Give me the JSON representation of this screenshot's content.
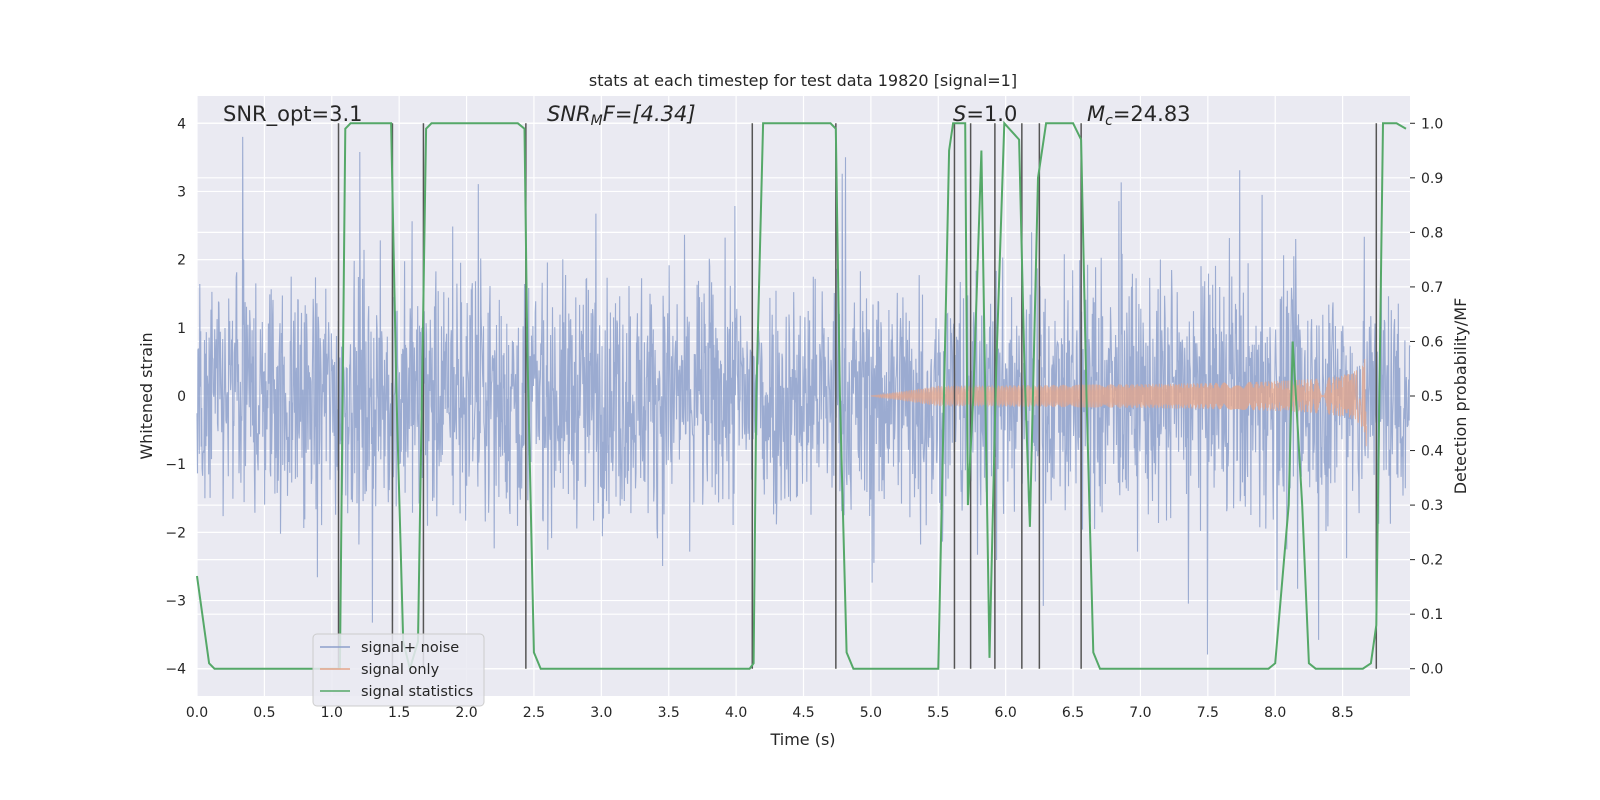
{
  "chart_data": {
    "type": "line",
    "title": "stats at each timestep for test data 19820 [signal=1]",
    "xlabel": "Time (s)",
    "ylabel": "Whitened strain",
    "ylabel_right": "Detection probability/MF",
    "xlim": [
      0,
      9.0
    ],
    "ylim": [
      -4.4,
      4.4
    ],
    "ylim_right": [
      -0.05,
      1.05
    ],
    "x_ticks": [
      "0.0",
      "0.5",
      "1.0",
      "1.5",
      "2.0",
      "2.5",
      "3.0",
      "3.5",
      "4.0",
      "4.5",
      "5.0",
      "5.5",
      "6.0",
      "6.5",
      "7.0",
      "7.5",
      "8.0",
      "8.5"
    ],
    "y_ticks": [
      "−4",
      "−3",
      "−2",
      "−1",
      "0",
      "1",
      "2",
      "3",
      "4"
    ],
    "y_ticks_right": [
      "0.0",
      "0.1",
      "0.2",
      "0.3",
      "0.4",
      "0.5",
      "0.6",
      "0.7",
      "0.8",
      "0.9",
      "1.0"
    ],
    "grid": true,
    "legend_position": "lower-left",
    "annotations": {
      "snr_opt": "SNR_opt=3.1",
      "snr_mf_main": "SNR",
      "snr_mf_sub": "M",
      "snr_mf_tail": "F=[4.34]",
      "s_main": "S",
      "s_tail": "=1.0",
      "mc_main": "M",
      "mc_sub": "c",
      "mc_tail": "=24.83"
    },
    "series": [
      {
        "name": "signal+ noise",
        "axis": "left",
        "color": "#8da0cb",
        "description_note": "whitened noisy strain, noise envelope roughly ±3.8 across 0–9 s"
      },
      {
        "name": "signal only",
        "axis": "left",
        "color": "#e5a58a",
        "chirp": {
          "start": 5.0,
          "end": 8.68,
          "peak_amplitude": 0.8
        }
      },
      {
        "name": "signal statistics",
        "axis": "right",
        "color": "#55a868",
        "x": [
          0.0,
          0.09,
          0.13,
          0.2,
          1.0,
          1.06,
          1.1,
          1.14,
          1.2,
          1.44,
          1.48,
          1.53,
          1.58,
          1.64,
          1.7,
          1.74,
          1.8,
          2.38,
          2.43,
          2.45,
          2.5,
          2.55,
          2.6,
          3.75,
          4.1,
          4.13,
          4.15,
          4.2,
          4.7,
          4.74,
          4.77,
          4.82,
          4.87,
          4.92,
          5.5,
          5.58,
          5.61,
          5.65,
          5.7,
          5.72,
          5.76,
          5.82,
          5.88,
          5.93,
          5.99,
          6.1,
          6.14,
          6.18,
          6.24,
          6.3,
          6.5,
          6.56,
          6.6,
          6.65,
          6.7,
          7.95,
          8.0,
          8.1,
          8.13,
          8.2,
          8.25,
          8.3,
          8.65,
          8.71,
          8.75,
          8.8,
          8.9,
          8.97
        ],
        "y": [
          0.17,
          0.01,
          0.0,
          0.0,
          0.0,
          0.0,
          0.99,
          1.0,
          1.0,
          1.0,
          0.5,
          0.05,
          0.0,
          0.05,
          0.99,
          1.0,
          1.0,
          1.0,
          0.99,
          0.6,
          0.03,
          0.0,
          0.0,
          0.0,
          0.0,
          0.01,
          0.5,
          1.0,
          1.0,
          0.99,
          0.5,
          0.03,
          0.0,
          0.0,
          0.0,
          0.95,
          1.0,
          1.0,
          1.0,
          0.3,
          0.5,
          0.95,
          0.02,
          0.55,
          1.0,
          0.97,
          0.55,
          0.26,
          0.9,
          1.0,
          1.0,
          0.97,
          0.5,
          0.03,
          0.0,
          0.0,
          0.01,
          0.3,
          0.6,
          0.3,
          0.01,
          0.0,
          0.0,
          0.01,
          0.08,
          1.0,
          1.0,
          0.99
        ]
      }
    ],
    "vertical_markers": [
      1.05,
      1.45,
      1.68,
      2.44,
      4.12,
      4.74,
      5.62,
      5.74,
      5.92,
      6.12,
      6.25,
      6.56,
      8.75
    ]
  }
}
